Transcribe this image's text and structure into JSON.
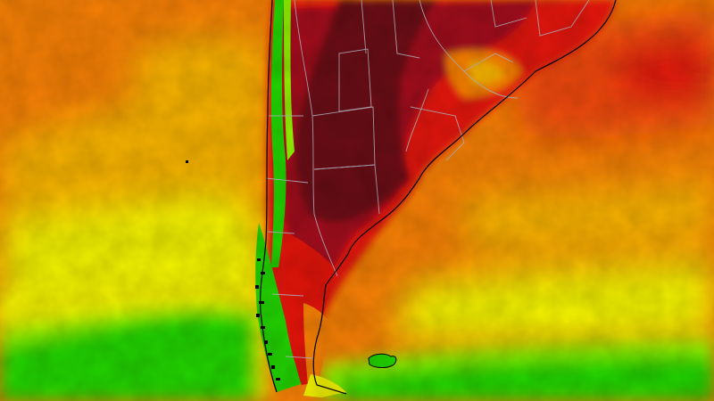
{
  "map": {
    "kind": "temperature-forecast",
    "region": "southern-south-america",
    "labels": [],
    "legend": null,
    "palette": {
      "cold_green": "#22d400",
      "light_green": "#8ef000",
      "yellow": "#f2f200",
      "gold": "#f7b300",
      "orange": "#f57f05",
      "red_orange": "#f04a0a",
      "red": "#e3140a",
      "dark_red": "#a2071a",
      "maroon": "#6a0a18",
      "border_line": "#b9b9c4"
    }
  }
}
